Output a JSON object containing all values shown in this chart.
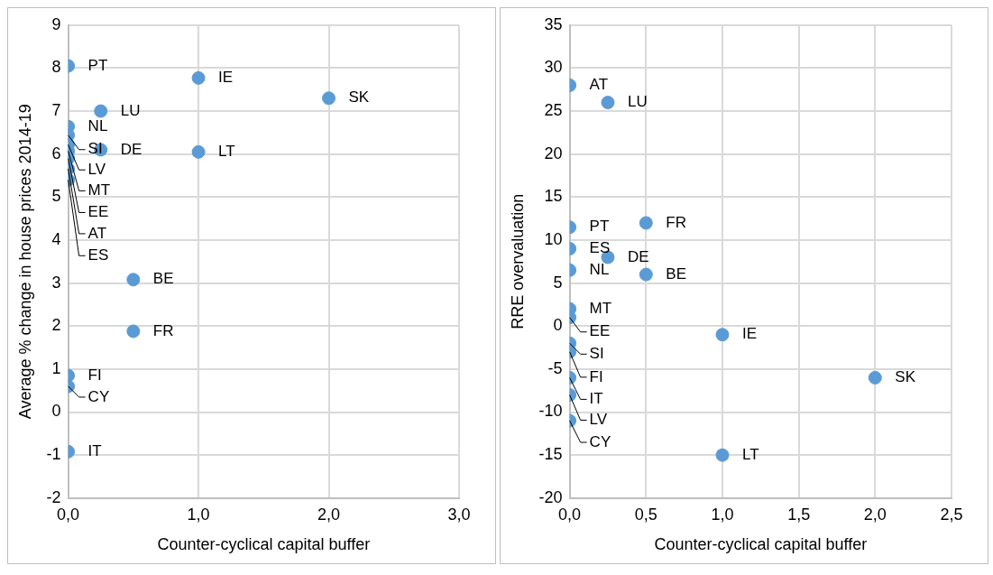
{
  "chart_data": [
    {
      "type": "scatter",
      "xlabel": "Counter-cyclical capital buffer",
      "ylabel": "Average % change in house prices 2014-19",
      "grid": true,
      "legend": false,
      "marker": "circle",
      "xlim": [
        0,
        3
      ],
      "xticks": [
        {
          "value": 0,
          "label": "0,0"
        },
        {
          "value": 1,
          "label": "1,0"
        },
        {
          "value": 2,
          "label": "2,0"
        },
        {
          "value": 3,
          "label": "3,0"
        }
      ],
      "ylim": [
        -2,
        9
      ],
      "yticks": [
        -2,
        -1,
        0,
        1,
        2,
        3,
        4,
        5,
        6,
        7,
        8,
        9
      ],
      "series": [
        {
          "color": "#5b9bd5",
          "x": [
            0,
            0,
            0,
            0,
            0,
            0,
            0,
            0,
            0.25,
            0.25,
            1,
            2,
            1,
            0.5,
            0.5,
            0,
            0,
            0
          ],
          "values": [
            8.05,
            6.64,
            6.44,
            6.22,
            6.07,
            5.9,
            5.66,
            5.4,
            7.0,
            6.1,
            7.77,
            7.3,
            6.05,
            3.08,
            1.88,
            0.85,
            0.6,
            -0.92
          ]
        }
      ],
      "annotations": [
        {
          "text": "PT",
          "x": 0,
          "y": 8.05
        },
        {
          "text": "NL",
          "x": 0,
          "y": 6.64
        },
        {
          "text": "SI",
          "x": 0,
          "y": 6.44
        },
        {
          "text": "LV",
          "x": 0,
          "y": 6.22
        },
        {
          "text": "MT",
          "x": 0,
          "y": 6.07
        },
        {
          "text": "EE",
          "x": 0,
          "y": 5.9
        },
        {
          "text": "AT",
          "x": 0,
          "y": 5.66
        },
        {
          "text": "ES",
          "x": 0,
          "y": 5.4
        },
        {
          "text": "LU",
          "x": 0.25,
          "y": 7.0
        },
        {
          "text": "DE",
          "x": 0.25,
          "y": 6.1
        },
        {
          "text": "IE",
          "x": 1,
          "y": 7.77
        },
        {
          "text": "SK",
          "x": 2,
          "y": 7.3
        },
        {
          "text": "LT",
          "x": 1,
          "y": 6.05
        },
        {
          "text": "BE",
          "x": 0.5,
          "y": 3.08
        },
        {
          "text": "FR",
          "x": 0.5,
          "y": 1.88
        },
        {
          "text": "FI",
          "x": 0,
          "y": 0.85
        },
        {
          "text": "CY",
          "x": 0,
          "y": 0.6
        },
        {
          "text": "IT",
          "x": 0,
          "y": -0.92
        }
      ]
    },
    {
      "type": "scatter",
      "xlabel": "Counter-cyclical capital buffer",
      "ylabel": "RRE overvaluation",
      "grid": true,
      "legend": false,
      "marker": "circle",
      "xlim": [
        0,
        2.5
      ],
      "xticks": [
        {
          "value": 0,
          "label": "0,0"
        },
        {
          "value": 0.5,
          "label": "0,5"
        },
        {
          "value": 1,
          "label": "1,0"
        },
        {
          "value": 1.5,
          "label": "1,5"
        },
        {
          "value": 2,
          "label": "2,0"
        },
        {
          "value": 2.5,
          "label": "2,5"
        }
      ],
      "ylim": [
        -20,
        35
      ],
      "yticks": [
        -20,
        -15,
        -10,
        -5,
        0,
        5,
        10,
        15,
        20,
        25,
        30,
        35
      ],
      "series": [
        {
          "color": "#5b9bd5",
          "x": [
            0,
            0.25,
            0.5,
            0,
            0,
            0.25,
            0,
            0.5,
            0,
            0,
            0,
            0,
            1,
            0,
            2,
            0,
            0,
            1
          ],
          "values": [
            28,
            26,
            12,
            11.5,
            9,
            8,
            6.5,
            6,
            2,
            1,
            -2,
            -3,
            -1,
            -6,
            -6,
            -8,
            -11,
            -15
          ]
        }
      ],
      "annotations": [
        {
          "text": "AT",
          "x": 0,
          "y": 28
        },
        {
          "text": "LU",
          "x": 0.25,
          "y": 26
        },
        {
          "text": "FR",
          "x": 0.5,
          "y": 12
        },
        {
          "text": "PT",
          "x": 0,
          "y": 11.5
        },
        {
          "text": "ES",
          "x": 0,
          "y": 9
        },
        {
          "text": "DE",
          "x": 0.25,
          "y": 8
        },
        {
          "text": "NL",
          "x": 0,
          "y": 6.5
        },
        {
          "text": "BE",
          "x": 0.5,
          "y": 6
        },
        {
          "text": "MT",
          "x": 0,
          "y": 2
        },
        {
          "text": "EE",
          "x": 0,
          "y": 1
        },
        {
          "text": "SI",
          "x": 0,
          "y": -2
        },
        {
          "text": "FI",
          "x": 0,
          "y": -3
        },
        {
          "text": "IE",
          "x": 1,
          "y": -1
        },
        {
          "text": "IT",
          "x": 0,
          "y": -6
        },
        {
          "text": "SK",
          "x": 2,
          "y": -6
        },
        {
          "text": "LV",
          "x": 0,
          "y": -8
        },
        {
          "text": "CY",
          "x": 0,
          "y": -11
        },
        {
          "text": "LT",
          "x": 1,
          "y": -15
        }
      ]
    }
  ]
}
